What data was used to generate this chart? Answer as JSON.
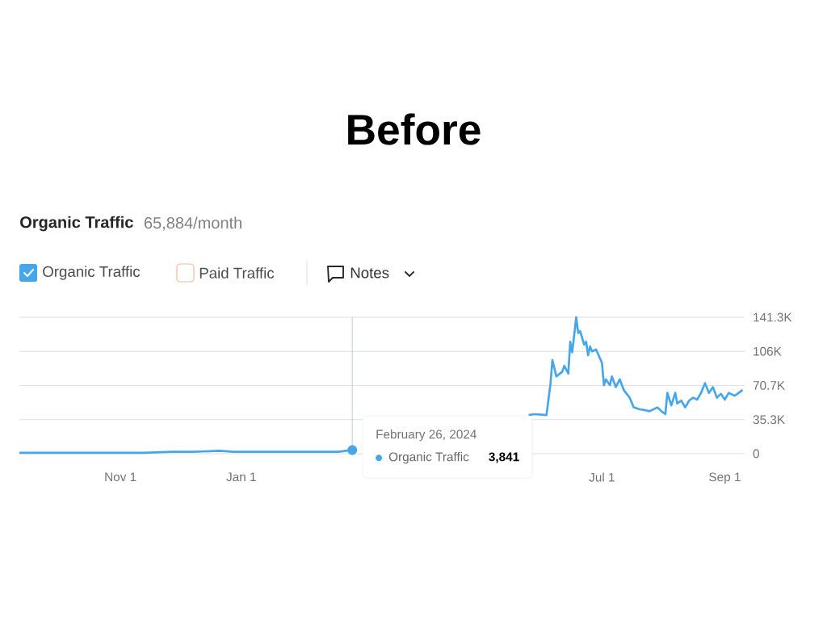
{
  "chart_data": {
    "type": "line",
    "title": "Before",
    "subtitle": "Organic Traffic",
    "annotations": [
      "65,884/month",
      "Paid Traffic",
      "Notes",
      {
        "text": "February 26, 2024",
        "x": "2024-02-26",
        "y": 3841
      },
      "Organic Traffic",
      "3,841"
    ],
    "x": [
      "2023-09-11",
      "2023-10-12",
      "2023-11-13",
      "2023-11-27",
      "2023-12-08",
      "2023-12-21",
      "2023-12-28",
      "2024-01-18",
      "2024-02-11",
      "2024-02-19",
      "2024-02-26",
      "2024-03-01",
      "2024-05-25",
      "2024-05-28",
      "2024-06-03",
      "2024-06-05",
      "2024-06-06",
      "2024-06-08",
      "2024-06-11",
      "2024-06-12",
      "2024-06-14",
      "2024-06-15",
      "2024-06-16",
      "2024-06-18",
      "2024-06-19",
      "2024-06-20",
      "2024-06-22",
      "2024-06-23",
      "2024-06-24",
      "2024-06-25",
      "2024-06-26",
      "2024-06-28",
      "2024-07-01",
      "2024-07-02",
      "2024-07-03",
      "2024-07-05",
      "2024-07-06",
      "2024-07-08",
      "2024-07-10",
      "2024-07-12",
      "2024-07-15",
      "2024-07-17",
      "2024-07-20",
      "2024-07-23",
      "2024-07-25",
      "2024-07-29",
      "2024-07-31",
      "2024-08-02",
      "2024-08-03",
      "2024-08-05",
      "2024-08-07",
      "2024-08-08",
      "2024-08-10",
      "2024-08-12",
      "2024-08-14",
      "2024-08-16",
      "2024-08-18",
      "2024-08-20",
      "2024-08-22",
      "2024-08-24",
      "2024-08-26",
      "2024-08-28",
      "2024-08-30",
      "2024-09-01",
      "2024-09-03",
      "2024-09-06",
      "2024-09-08",
      "2024-09-10"
    ],
    "series": [
      {
        "name": "Organic Traffic",
        "color": "#46a6ea",
        "values": [
          1000,
          1000,
          1000,
          2000,
          2000,
          3000,
          2000,
          2000,
          2000,
          2000,
          3841,
          null,
          40000,
          41000,
          40000,
          72000,
          97000,
          80000,
          85000,
          91000,
          83000,
          116000,
          105000,
          141300,
          125000,
          127000,
          113000,
          116000,
          102000,
          111000,
          106000,
          108000,
          94000,
          71000,
          77000,
          71000,
          80000,
          69000,
          77000,
          66000,
          58000,
          48000,
          46000,
          45000,
          44000,
          48000,
          44000,
          41000,
          63000,
          50000,
          63000,
          52000,
          55000,
          48000,
          55000,
          58000,
          56000,
          63000,
          73000,
          63000,
          69000,
          58000,
          62000,
          56000,
          63000,
          60000,
          63000,
          66000
        ]
      }
    ],
    "xlim": [
      "2023-09-11",
      "2024-09-11"
    ],
    "xticks": [
      {
        "value": "2023-11-01",
        "label": "Nov 1"
      },
      {
        "value": "2024-01-01",
        "label": "Jan 1"
      },
      {
        "value": "2024-07-01",
        "label": "Jul 1"
      },
      {
        "value": "2024-09-01",
        "label": "Sep 1"
      }
    ],
    "ylim": [
      0,
      141300
    ],
    "yticks": [
      0,
      {
        "value": 35300,
        "label": "35.3K"
      },
      {
        "value": 70700,
        "label": "70.7K"
      },
      {
        "value": 106000,
        "label": "106K"
      },
      {
        "value": 141300,
        "label": "141.3K"
      }
    ],
    "ref_lines": [
      {
        "axis": "x",
        "value": "2024-02-26",
        "color": "#c8ccd2"
      }
    ],
    "grid": "y",
    "legend": "top left"
  }
}
